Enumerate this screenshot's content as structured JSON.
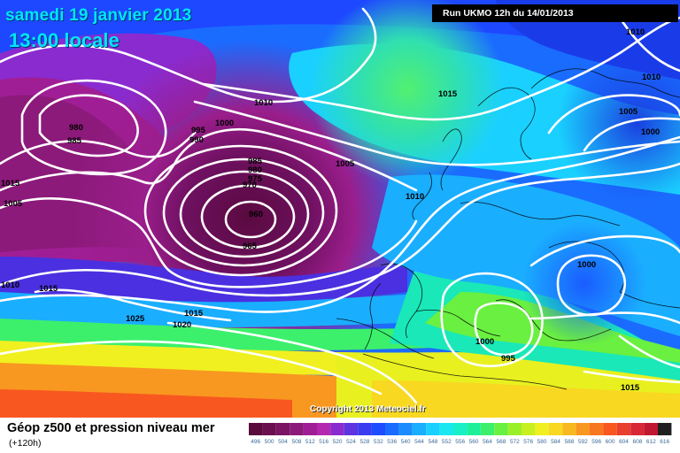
{
  "map": {
    "date_label": "samedi 19 janvier 2013",
    "time_label": "13:00 locale",
    "run_label": "Run UKMO 12h du 14/01/2013",
    "copyright": "Copyright 2013 Meteociel.fr",
    "isobar_labels": [
      "980",
      "985",
      "1000",
      "995",
      "990",
      "1010",
      "1015",
      "985",
      "980",
      "975",
      "970",
      "1005",
      "960",
      "965",
      "1010",
      "1005",
      "1015",
      "1025",
      "1015",
      "1020",
      "1010",
      "1010",
      "1005",
      "1000",
      "1000",
      "1000",
      "995",
      "1015"
    ]
  },
  "legend": {
    "title": "Géop z500 et pression niveau mer",
    "subtitle": "(+120h)",
    "scale_values": [
      "496",
      "500",
      "504",
      "508",
      "512",
      "516",
      "520",
      "524",
      "528",
      "532",
      "536",
      "540",
      "544",
      "548",
      "552",
      "556",
      "560",
      "564",
      "568",
      "572",
      "576",
      "580",
      "584",
      "588",
      "592",
      "596",
      "600",
      "604",
      "608",
      "612",
      "616"
    ],
    "scale_colors": [
      "#5a0a3c",
      "#6b0f4f",
      "#7a1463",
      "#8c1a7a",
      "#a01e95",
      "#b229b0",
      "#8a2bd0",
      "#5e33e0",
      "#3a3cf0",
      "#1e4cff",
      "#1a6bff",
      "#1a8cff",
      "#1aaeff",
      "#1ad0ff",
      "#1ae8f0",
      "#1af0c8",
      "#1ef09a",
      "#3cf06c",
      "#6af040",
      "#9af028",
      "#c8f020",
      "#f0f020",
      "#f8d820",
      "#f8b820",
      "#f89820",
      "#f87820",
      "#f85820",
      "#e84030",
      "#d82838",
      "#c01830",
      "#202020"
    ]
  },
  "colors": {
    "isobar": "#ffffff",
    "title": "#00e5ff"
  }
}
